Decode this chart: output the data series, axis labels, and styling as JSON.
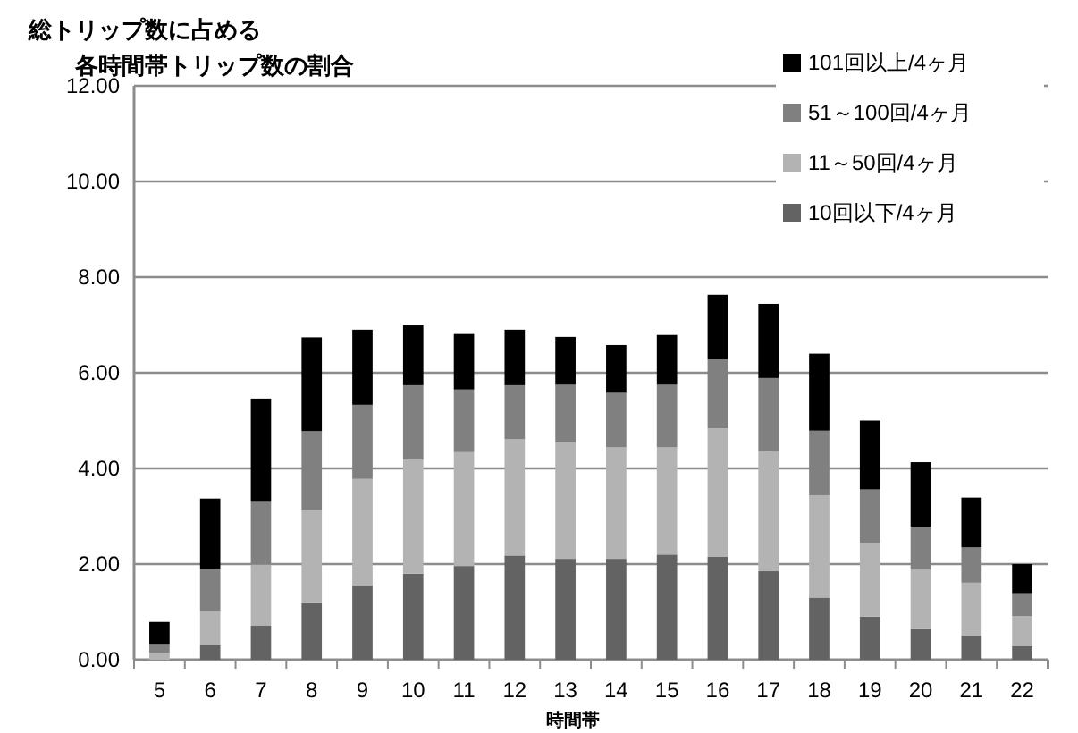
{
  "chart_data": {
    "type": "bar",
    "stacked": true,
    "title": "総トリップ数に占める",
    "subtitle": "各時間帯トリップ数の割合",
    "xlabel": "時間帯",
    "categories": [
      "5",
      "6",
      "7",
      "8",
      "9",
      "10",
      "11",
      "12",
      "13",
      "14",
      "15",
      "16",
      "17",
      "18",
      "19",
      "20",
      "21",
      "22"
    ],
    "series": [
      {
        "name": "10回以下/4ヶ月",
        "color": "#636363",
        "values": [
          null,
          0.31,
          0.71,
          1.18,
          1.55,
          1.8,
          1.96,
          2.18,
          2.11,
          2.11,
          2.2,
          2.15,
          1.85,
          1.3,
          0.9,
          0.64,
          0.5,
          0.29
        ]
      },
      {
        "name": "11～50回/4ヶ月",
        "color": "#b3b3b3",
        "values": [
          0.14,
          0.71,
          1.28,
          1.95,
          2.23,
          2.38,
          2.38,
          2.43,
          2.43,
          2.33,
          2.24,
          2.69,
          2.51,
          2.14,
          1.54,
          1.24,
          1.11,
          0.62
        ]
      },
      {
        "name": "51～100回/4ヶ月",
        "color": "#808080",
        "values": [
          0.19,
          0.88,
          1.31,
          1.65,
          1.55,
          1.56,
          1.31,
          1.13,
          1.21,
          1.14,
          1.31,
          1.44,
          1.53,
          1.35,
          1.12,
          0.9,
          0.74,
          0.48
        ]
      },
      {
        "name": "101回以上/4ヶ月",
        "color": "#000000",
        "values": [
          0.46,
          1.47,
          2.16,
          1.96,
          1.57,
          1.25,
          1.16,
          1.16,
          1.0,
          1.0,
          1.04,
          1.35,
          1.55,
          1.61,
          1.44,
          1.35,
          1.04,
          0.61
        ]
      }
    ],
    "ylim": [
      0,
      12
    ],
    "yticks": [
      {
        "value": 0,
        "label": "0.00"
      },
      {
        "value": 2,
        "label": "2.00"
      },
      {
        "value": 4,
        "label": "4.00"
      },
      {
        "value": 6,
        "label": "6.00"
      },
      {
        "value": 8,
        "label": "8.00"
      },
      {
        "value": 10,
        "label": "10.00"
      },
      {
        "value": 12,
        "label": "12.00"
      }
    ],
    "grid": "y",
    "legend": "top right"
  }
}
